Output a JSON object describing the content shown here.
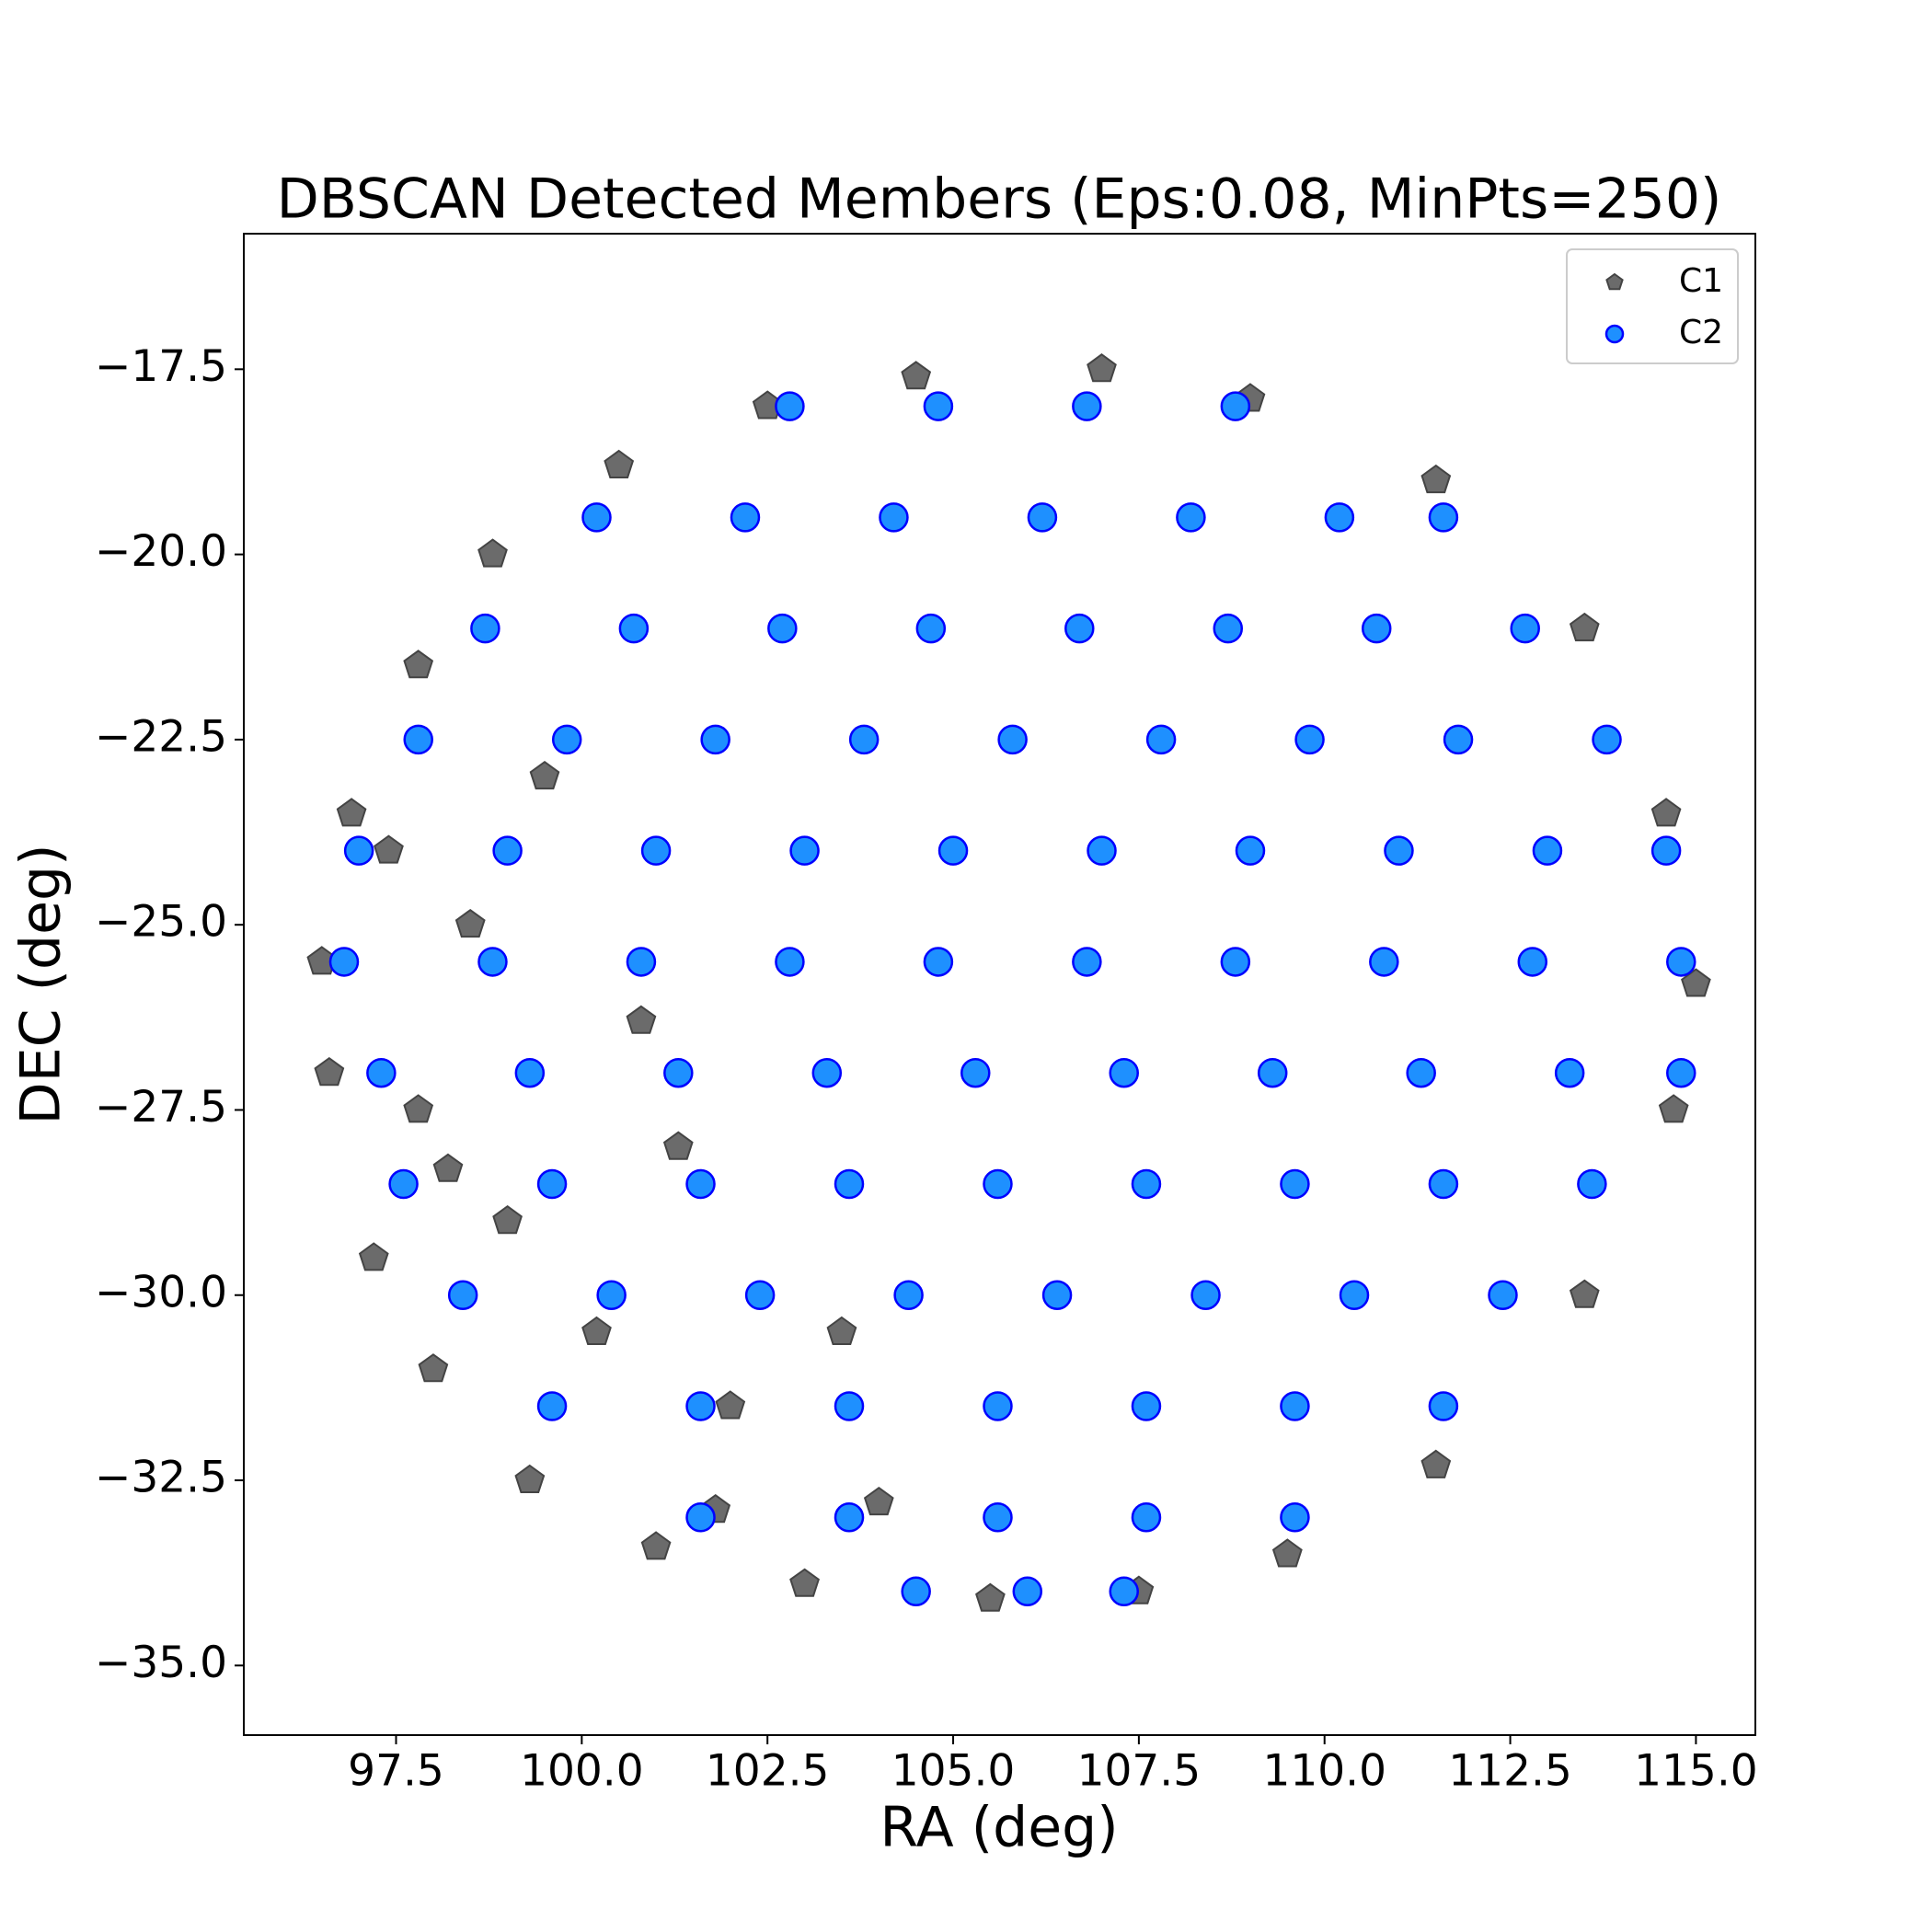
{
  "chart_data": {
    "type": "scatter",
    "title": "DBSCAN Detected Members (Eps:0.08, MinPts=250)",
    "x_label": "RA (deg)",
    "y_label": "DEC (deg)",
    "xlim": [
      95.45,
      115.8
    ],
    "ylim": [
      -35.94,
      -15.67
    ],
    "xticks": [
      97.5,
      {
        "value": 100,
        "label": "100.0"
      },
      102.5,
      {
        "value": 105,
        "label": "105.0"
      },
      107.5,
      {
        "value": 110,
        "label": "110.0"
      },
      112.5,
      {
        "value": 115,
        "label": "115.0"
      }
    ],
    "yticks": [
      {
        "value": -17.5,
        "label": "−17.5"
      },
      {
        "value": -20,
        "label": "−20.0"
      },
      {
        "value": -22.5,
        "label": "−22.5"
      },
      {
        "value": -25,
        "label": "−25.0"
      },
      {
        "value": -27.5,
        "label": "−27.5"
      },
      {
        "value": -30,
        "label": "−30.0"
      },
      {
        "value": -32.5,
        "label": "−32.5"
      },
      {
        "value": -35,
        "label": "−35.0"
      }
    ],
    "grid": false,
    "legend": "upper right",
    "series": [
      {
        "name": "C1",
        "color": "#6b6b6b",
        "marker": "pentagon",
        "x": [
          96.5,
          96.6,
          96.9,
          97.2,
          97.8,
          98.0,
          98.8,
          99.3,
          100.5,
          101.0,
          102.5,
          103.0,
          104.5,
          105.5,
          107.5,
          109.5,
          111.5,
          113.5,
          114.7,
          115.0,
          114.6,
          113.5,
          111.5,
          109.0,
          107.0,
          97.8,
          98.5,
          99.0,
          99.5,
          100.2,
          101.3,
          102.0,
          103.5,
          97.4,
          98.2,
          100.8,
          104.0,
          101.8
        ],
        "y": [
          -25.5,
          -27.0,
          -23.5,
          -29.5,
          -21.5,
          -31.0,
          -20.0,
          -32.5,
          -18.8,
          -33.4,
          -18.0,
          -33.9,
          -17.6,
          -34.1,
          -34.0,
          -33.5,
          -32.3,
          -30.0,
          -27.5,
          -25.8,
          -23.5,
          -21.0,
          -19.0,
          -17.9,
          -17.5,
          -27.5,
          -25.0,
          -29.0,
          -23.0,
          -30.5,
          -28.0,
          -31.5,
          -30.5,
          -24.0,
          -28.3,
          -26.3,
          -32.8,
          -32.9
        ]
      },
      {
        "name": "C2",
        "color": "#1e90ff",
        "marker": "circle",
        "x": [
          102.8,
          104.8,
          106.8,
          108.8,
          100.2,
          102.2,
          104.2,
          106.2,
          108.2,
          110.2,
          111.6,
          98.7,
          100.7,
          102.7,
          104.7,
          106.7,
          108.7,
          110.7,
          112.7,
          97.8,
          99.8,
          101.8,
          103.8,
          105.8,
          107.8,
          109.8,
          111.8,
          113.8,
          97.0,
          99.0,
          101.0,
          103.0,
          105.0,
          107.0,
          109.0,
          111.0,
          113.0,
          114.6,
          96.8,
          98.8,
          100.8,
          102.8,
          104.8,
          106.8,
          108.8,
          110.8,
          112.8,
          114.8,
          97.3,
          99.3,
          101.3,
          103.3,
          105.3,
          107.3,
          109.3,
          111.3,
          113.3,
          114.8,
          97.6,
          99.6,
          101.6,
          103.6,
          105.6,
          107.6,
          109.6,
          111.6,
          113.6,
          98.4,
          100.4,
          102.4,
          104.4,
          106.4,
          108.4,
          110.4,
          112.4,
          99.6,
          101.6,
          103.6,
          105.6,
          107.6,
          109.6,
          111.6,
          101.6,
          103.6,
          105.6,
          107.6,
          109.6,
          104.5,
          106.0,
          107.3
        ],
        "y": [
          -18.0,
          -18.0,
          -18.0,
          -18.0,
          -19.5,
          -19.5,
          -19.5,
          -19.5,
          -19.5,
          -19.5,
          -19.5,
          -21.0,
          -21.0,
          -21.0,
          -21.0,
          -21.0,
          -21.0,
          -21.0,
          -21.0,
          -22.5,
          -22.5,
          -22.5,
          -22.5,
          -22.5,
          -22.5,
          -22.5,
          -22.5,
          -22.5,
          -24.0,
          -24.0,
          -24.0,
          -24.0,
          -24.0,
          -24.0,
          -24.0,
          -24.0,
          -24.0,
          -24.0,
          -25.5,
          -25.5,
          -25.5,
          -25.5,
          -25.5,
          -25.5,
          -25.5,
          -25.5,
          -25.5,
          -25.5,
          -27.0,
          -27.0,
          -27.0,
          -27.0,
          -27.0,
          -27.0,
          -27.0,
          -27.0,
          -27.0,
          -27.0,
          -28.5,
          -28.5,
          -28.5,
          -28.5,
          -28.5,
          -28.5,
          -28.5,
          -28.5,
          -28.5,
          -30.0,
          -30.0,
          -30.0,
          -30.0,
          -30.0,
          -30.0,
          -30.0,
          -30.0,
          -31.5,
          -31.5,
          -31.5,
          -31.5,
          -31.5,
          -31.5,
          -31.5,
          -33.0,
          -33.0,
          -33.0,
          -33.0,
          -33.0,
          -34.0,
          -34.0,
          -34.0
        ]
      }
    ]
  }
}
